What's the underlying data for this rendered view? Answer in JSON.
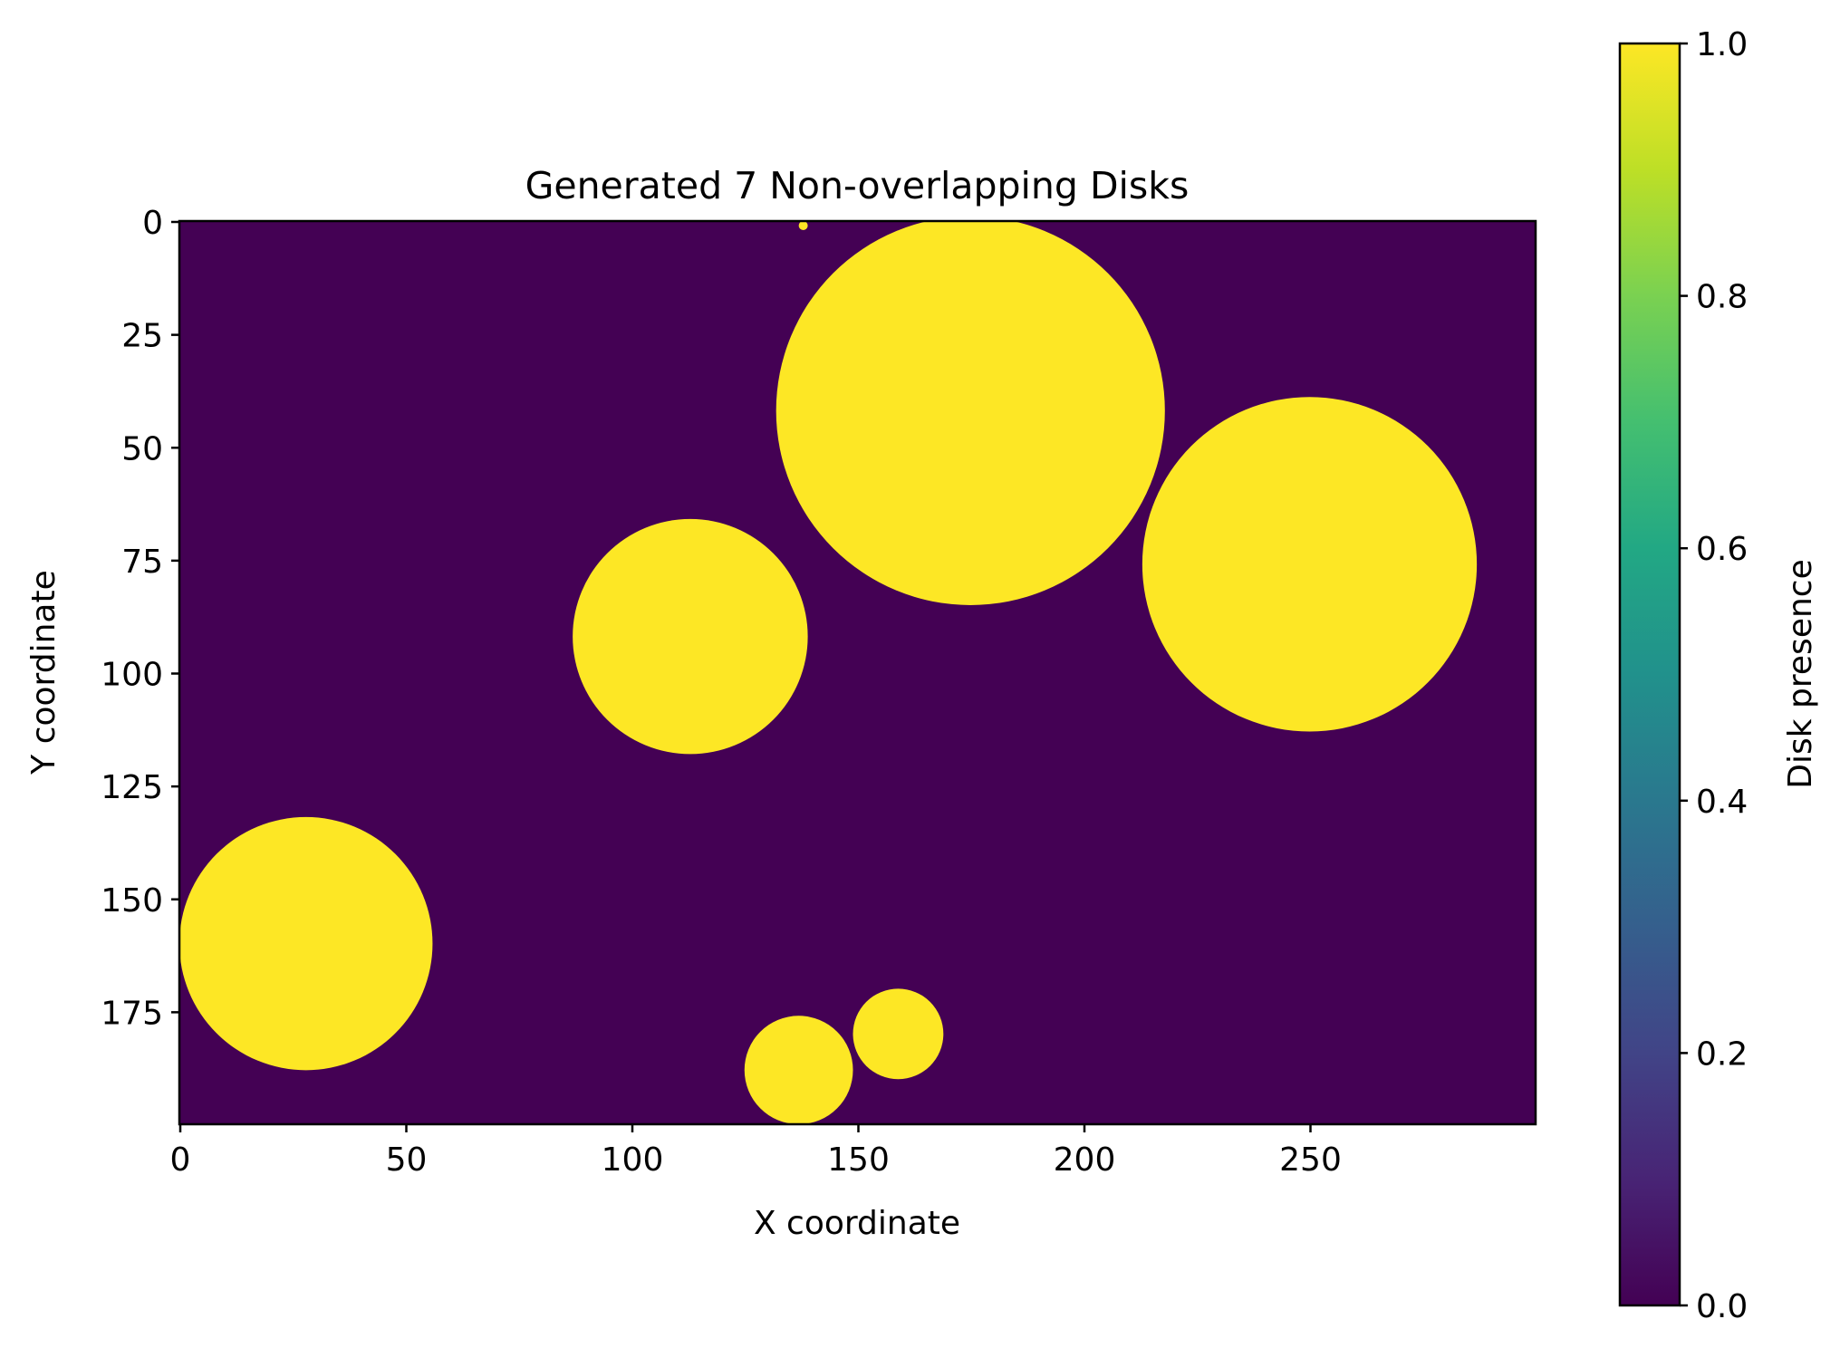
{
  "chart_data": {
    "type": "heatmap",
    "title": "Generated 7 Non-overlapping Disks",
    "xlabel": "X coordinate",
    "ylabel": "Y coordinate",
    "xlim": [
      0,
      300
    ],
    "ylim": [
      200,
      0
    ],
    "y_axis_inverted": true,
    "grid": false,
    "x_ticks": [
      0,
      50,
      100,
      150,
      200,
      250
    ],
    "y_ticks": [
      0,
      25,
      50,
      75,
      100,
      125,
      150,
      175
    ],
    "colormap": "viridis",
    "colors": {
      "background": "#440154",
      "disk": "#fde725"
    },
    "disks": [
      {
        "cx": 175,
        "cy": 42,
        "r": 43
      },
      {
        "cx": 250,
        "cy": 76,
        "r": 37
      },
      {
        "cx": 113,
        "cy": 92,
        "r": 26
      },
      {
        "cx": 28,
        "cy": 160,
        "r": 28
      },
      {
        "cx": 159,
        "cy": 180,
        "r": 10
      },
      {
        "cx": 137,
        "cy": 188,
        "r": 12
      },
      {
        "cx": 138,
        "cy": 1,
        "r": 1
      }
    ],
    "colorbar": {
      "label": "Disk presence",
      "min": 0.0,
      "max": 1.0,
      "ticks": [
        "0.0",
        "0.2",
        "0.4",
        "0.6",
        "0.8",
        "1.0"
      ]
    }
  }
}
